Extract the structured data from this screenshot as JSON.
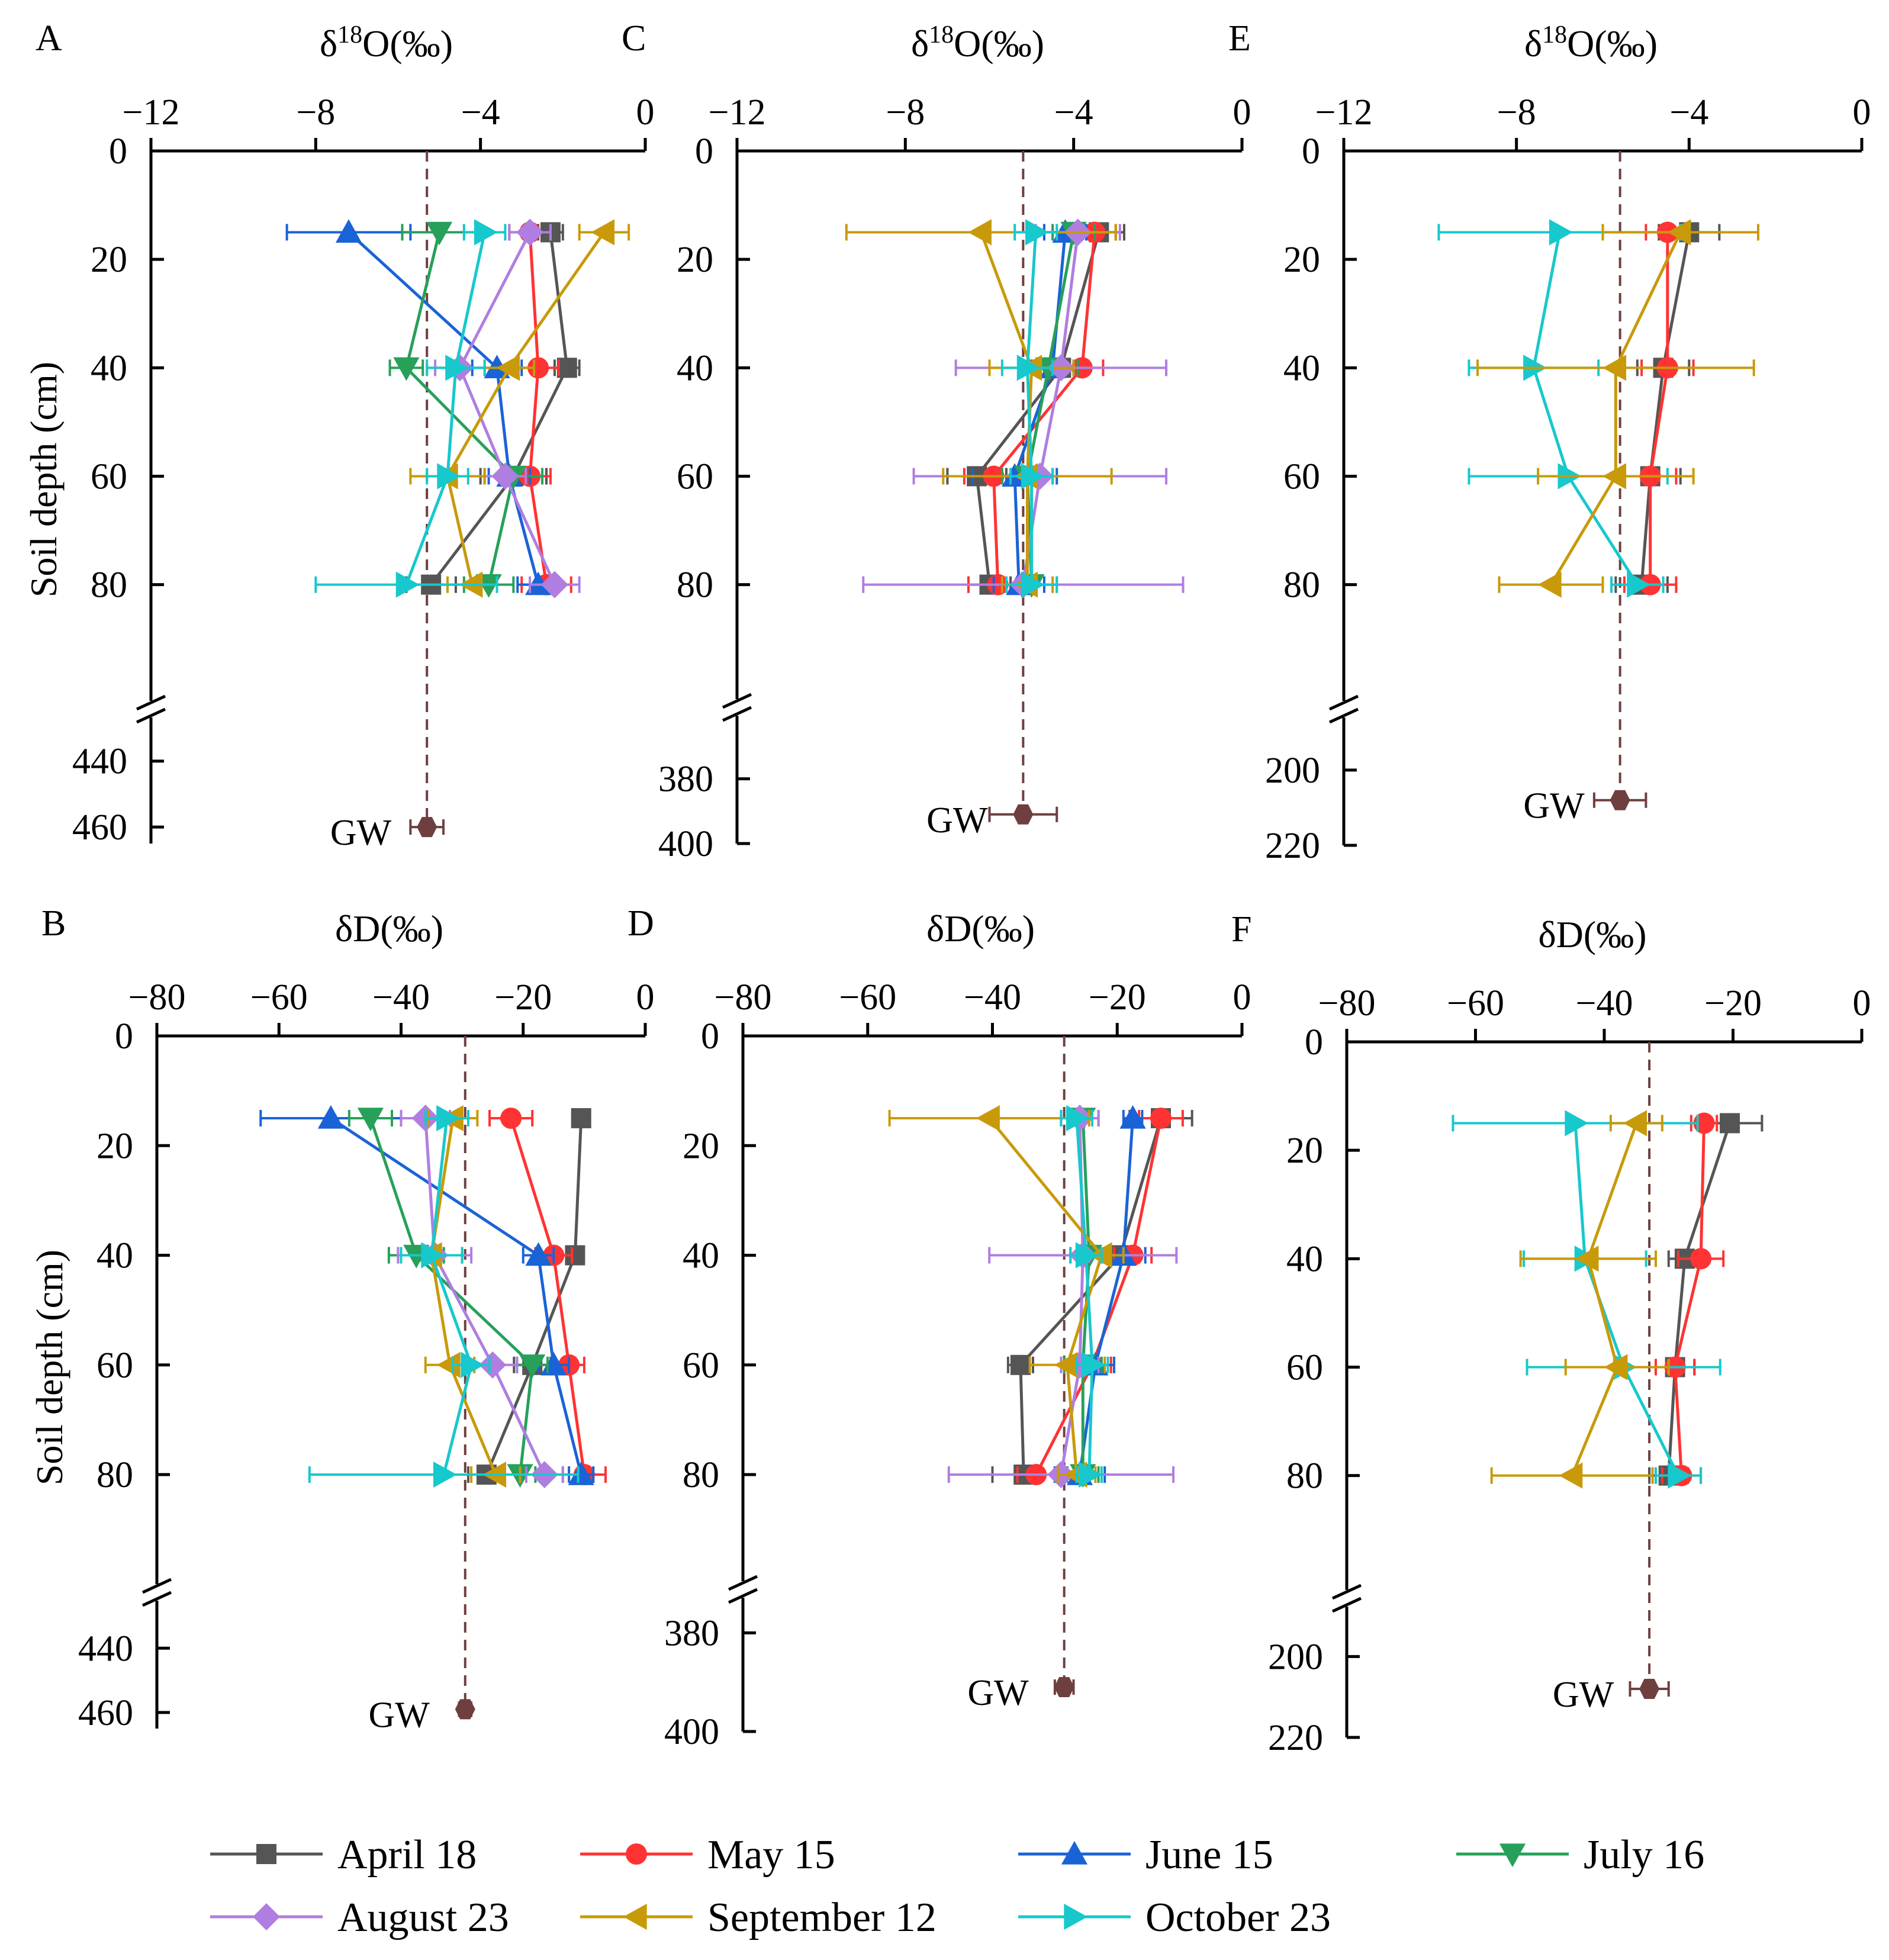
{
  "chart_data": {
    "type": "scatter",
    "description_series": [
      {
        "name": "April 18",
        "color": "#555555",
        "marker": "square"
      },
      {
        "name": "May 15",
        "color": "#ff3333",
        "marker": "circle"
      },
      {
        "name": "June 15",
        "color": "#1a63d6",
        "marker": "triangle-up"
      },
      {
        "name": "July 16",
        "color": "#27a05a",
        "marker": "triangle-down"
      },
      {
        "name": "August 23",
        "color": "#b07ee0",
        "marker": "diamond"
      },
      {
        "name": "September 12",
        "color": "#c89a0a",
        "marker": "triangle-left"
      },
      {
        "name": "October 23",
        "color": "#17c8cc",
        "marker": "triangle-right"
      }
    ],
    "gw_color": "#6f3f3f",
    "gw_label": "GW",
    "depths": [
      15,
      40,
      60,
      80
    ],
    "panels": [
      {
        "letter": "A",
        "title": "δ18O(‰)",
        "title_base": "δ",
        "title_sup": "18",
        "title_rest": "O(‰)",
        "xlim": [
          -12,
          0
        ],
        "xticks": [
          "−12",
          "−8",
          "−4",
          "0"
        ],
        "xtick_values": [
          -12,
          -8,
          -4,
          0
        ],
        "ylabel": "Soil depth (cm)",
        "yticks_upper": [
          "0",
          "20",
          "40",
          "60",
          "80"
        ],
        "yticks_lower": [
          "440",
          "460"
        ],
        "lower_range": [
          430,
          465
        ],
        "gw": {
          "depth": 460,
          "value": -5.3,
          "err": 0.4
        },
        "series": [
          {
            "name": "April 18",
            "values": [
              -2.3,
              -1.9,
              -3.2,
              -5.2
            ],
            "err": [
              0.3,
              0.3,
              0.8,
              0.6
            ]
          },
          {
            "name": "May 15",
            "values": [
              -2.8,
              -2.6,
              -2.8,
              -2.4
            ],
            "err": [
              0.5,
              0.5,
              0.5,
              0.6
            ]
          },
          {
            "name": "June 15",
            "values": [
              -7.2,
              -3.6,
              -3.3,
              -2.6
            ],
            "err": [
              1.5,
              0.6,
              0.5,
              0.5
            ]
          },
          {
            "name": "July 16",
            "values": [
              -5.0,
              -5.8,
              -3.2,
              -3.8
            ],
            "err": [
              0.9,
              0.4,
              0.7,
              0.6
            ]
          },
          {
            "name": "August 23",
            "values": [
              -2.8,
              -4.5,
              -3.4,
              -2.2
            ],
            "err": [
              0.5,
              0.6,
              0.5,
              0.6
            ]
          },
          {
            "name": "September 12",
            "values": [
              -1.0,
              -3.3,
              -4.8,
              -4.2
            ],
            "err": [
              0.6,
              0.6,
              0.9,
              0.6
            ]
          },
          {
            "name": "October 23",
            "values": [
              -3.9,
              -4.6,
              -4.8,
              -5.8
            ],
            "err": [
              0.5,
              0.7,
              0.5,
              2.2
            ]
          }
        ]
      },
      {
        "letter": "B",
        "title": "δD(‰)",
        "title_base": "δD(‰)",
        "title_sup": "",
        "title_rest": "",
        "xlim": [
          -80,
          0
        ],
        "xticks": [
          "−80",
          "−60",
          "−40",
          "−20",
          "0"
        ],
        "xtick_values": [
          -80,
          -60,
          -40,
          -20,
          0
        ],
        "ylabel": "Soil depth (cm)",
        "yticks_upper": [
          "0",
          "20",
          "40",
          "60",
          "80"
        ],
        "yticks_lower": [
          "440",
          "460"
        ],
        "lower_range": [
          430,
          465
        ],
        "gw": {
          "depth": 459,
          "value": -29.5,
          "err": 1
        },
        "series": [
          {
            "name": "April 18",
            "values": [
              -10.5,
              -11.5,
              -18.5,
              -26.0
            ],
            "err": [
              0.5,
              0.8,
              3.0,
              3.0
            ]
          },
          {
            "name": "May 15",
            "values": [
              -22.0,
              -15.0,
              -12.5,
              -10.0
            ],
            "err": [
              3.5,
              3.0,
              2.5,
              3.5
            ]
          },
          {
            "name": "June 15",
            "values": [
              -51.5,
              -17.5,
              -15.0,
              -10.5
            ],
            "err": [
              11.5,
              2.5,
              2.5,
              2.0
            ]
          },
          {
            "name": "July 16",
            "values": [
              -45.0,
              -37.5,
              -18.5,
              -20.5
            ],
            "err": [
              3.5,
              4.5,
              2.5,
              2.5
            ]
          },
          {
            "name": "August 23",
            "values": [
              -36.0,
              -34.5,
              -25.0,
              -16.5
            ],
            "err": [
              4.0,
              6.0,
              4.0,
              3.0
            ]
          },
          {
            "name": "September 12",
            "values": [
              -31.5,
              -35.0,
              -32.0,
              -24.5
            ],
            "err": [
              4.0,
              5.0,
              4.0,
              4.0
            ]
          },
          {
            "name": "October 23",
            "values": [
              -32.5,
              -35.0,
              -28.5,
              -33.0
            ],
            "err": [
              3.5,
              5.0,
              3.0,
              22.0
            ]
          }
        ]
      },
      {
        "letter": "C",
        "title": "δ18O(‰)",
        "title_base": "δ",
        "title_sup": "18",
        "title_rest": "O(‰)",
        "xlim": [
          -12,
          0
        ],
        "xticks": [
          "−12",
          "−8",
          "−4",
          "0"
        ],
        "xtick_values": [
          -12,
          -8,
          -4,
          0
        ],
        "ylabel": "",
        "yticks_upper": [
          "0",
          "20",
          "40",
          "60",
          "80"
        ],
        "yticks_lower": [
          "380",
          "400"
        ],
        "lower_range": [
          368,
          400
        ],
        "gw": {
          "depth": 391,
          "value": -5.2,
          "err": 0.8
        },
        "series": [
          {
            "name": "April 18",
            "values": [
              -3.4,
              -4.3,
              -6.3,
              -6.0
            ],
            "err": [
              0.6,
              0.5,
              0.7,
              0.5
            ]
          },
          {
            "name": "May 15",
            "values": [
              -3.5,
              -3.8,
              -5.9,
              -5.8
            ],
            "err": [
              0.5,
              0.5,
              0.7,
              0.7
            ]
          },
          {
            "name": "June 15",
            "values": [
              -4.2,
              -4.5,
              -5.4,
              -5.3
            ],
            "err": [
              0.5,
              0.5,
              1.0,
              0.6
            ]
          },
          {
            "name": "July 16",
            "values": [
              -4.0,
              -4.6,
              -5.1,
              -5.0
            ],
            "err": [
              0.5,
              0.7,
              0.6,
              0.6
            ]
          },
          {
            "name": "August 23",
            "values": [
              -3.9,
              -4.3,
              -4.8,
              -5.2
            ],
            "err": [
              1.0,
              2.5,
              3.0,
              3.8
            ]
          },
          {
            "name": "September 12",
            "values": [
              -6.2,
              -5.0,
              -5.1,
              -5.1
            ],
            "err": [
              3.2,
              1.0,
              2.0,
              0.6
            ]
          },
          {
            "name": "October 23",
            "values": [
              -4.9,
              -5.1,
              -5.0,
              -5.0
            ],
            "err": [
              0.5,
              0.6,
              0.5,
              0.6
            ]
          }
        ]
      },
      {
        "letter": "D",
        "title": "δD(‰)",
        "title_base": "δD(‰)",
        "title_sup": "",
        "title_rest": "",
        "xlim": [
          -80,
          0
        ],
        "xticks": [
          "−80",
          "−60",
          "−40",
          "−20",
          "0"
        ],
        "xtick_values": [
          -80,
          -60,
          -40,
          -20,
          0
        ],
        "ylabel": "",
        "yticks_upper": [
          "0",
          "20",
          "40",
          "60",
          "80"
        ],
        "yticks_lower": [
          "380",
          "400"
        ],
        "lower_range": [
          373,
          400
        ],
        "gw": {
          "depth": 391,
          "value": -28.5,
          "err": 1.5
        },
        "series": [
          {
            "name": "April 18",
            "values": [
              -13.0,
              -19.5,
              -35.5,
              -35.0
            ],
            "err": [
              5.0,
              3.0,
              2.0,
              5.0
            ]
          },
          {
            "name": "May 15",
            "values": [
              -13.0,
              -17.5,
              -24.0,
              -33.0
            ],
            "err": [
              3.5,
              3.0,
              3.0,
              3.0
            ]
          },
          {
            "name": "June 15",
            "values": [
              -17.5,
              -19.0,
              -23.5,
              -26.0
            ],
            "err": [
              1.5,
              3.5,
              3.0,
              4.0
            ]
          },
          {
            "name": "July 16",
            "values": [
              -25.5,
              -24.5,
              -25.5,
              -25.5
            ],
            "err": [
              2.5,
              3.0,
              3.0,
              2.5
            ]
          },
          {
            "name": "August 23",
            "values": [
              -26.0,
              -25.5,
              -26.0,
              -29.0
            ],
            "err": [
              3.0,
              15.0,
              3.0,
              18.0
            ]
          },
          {
            "name": "September 12",
            "values": [
              -40.5,
              -22.5,
              -28.0,
              -26.5
            ],
            "err": [
              16.0,
              3.5,
              6.0,
              3.0
            ]
          },
          {
            "name": "October 23",
            "values": [
              -26.5,
              -25.0,
              -24.0,
              -24.5
            ],
            "err": [
              2.5,
              2.5,
              2.5,
              2.0
            ]
          }
        ]
      },
      {
        "letter": "E",
        "title": "δ18O(‰)",
        "title_base": "δ",
        "title_sup": "18",
        "title_rest": "O(‰)",
        "xlim": [
          -12,
          0
        ],
        "xticks": [
          "−12",
          "−8",
          "−4",
          "0"
        ],
        "xtick_values": [
          -12,
          -8,
          -4,
          0
        ],
        "ylabel": "",
        "yticks_upper": [
          "0",
          "20",
          "40",
          "60",
          "80"
        ],
        "yticks_lower": [
          "200",
          "220"
        ],
        "lower_range": [
          192,
          220
        ],
        "gw": {
          "depth": 208,
          "value": -5.6,
          "err": 0.6
        },
        "series": [
          {
            "name": "April 18",
            "values": [
              -4.0,
              -4.6,
              -4.9,
              -5.1
            ],
            "err": [
              0.7,
              0.6,
              0.7,
              0.6
            ]
          },
          {
            "name": "May 15",
            "values": [
              -4.5,
              -4.5,
              -4.9,
              -4.9
            ],
            "err": [
              0.5,
              0.6,
              0.6,
              0.6
            ]
          },
          {
            "name": "October 23",
            "values": [
              -7.0,
              -7.6,
              -6.8,
              -5.2
            ],
            "err": [
              2.8,
              1.5,
              2.3,
              0.6
            ]
          },
          {
            "name": "September 12",
            "values": [
              -4.2,
              -5.7,
              -5.7,
              -7.2
            ],
            "err": [
              1.8,
              3.2,
              1.8,
              1.2
            ]
          }
        ]
      },
      {
        "letter": "F",
        "title": "δD(‰)",
        "title_base": "δD(‰)",
        "title_sup": "",
        "title_rest": "",
        "xlim": [
          -80,
          0
        ],
        "xticks": [
          "−80",
          "−60",
          "−40",
          "−20",
          "0"
        ],
        "xtick_values": [
          -80,
          -60,
          -40,
          -20,
          0
        ],
        "ylabel": "",
        "yticks_upper": [
          "0",
          "20",
          "40",
          "60",
          "80"
        ],
        "yticks_lower": [
          "200",
          "220"
        ],
        "lower_range": [
          190,
          220
        ],
        "gw": {
          "depth": 208,
          "value": -33,
          "err": 3
        },
        "series": [
          {
            "name": "April 18",
            "values": [
              -20.5,
              -27.5,
              -29.0,
              -30.0
            ],
            "err": [
              5.0,
              2.5,
              3.0,
              3.0
            ]
          },
          {
            "name": "May 15",
            "values": [
              -24.5,
              -25.0,
              -29.0,
              -28.0
            ],
            "err": [
              2.0,
              3.5,
              3.0,
              3.0
            ]
          },
          {
            "name": "October 23",
            "values": [
              -44.5,
              -43.0,
              -37.0,
              -28.5
            ],
            "err": [
              19.0,
              9.5,
              15.0,
              3.5
            ]
          },
          {
            "name": "September 12",
            "values": [
              -35.0,
              -42.5,
              -38.0,
              -45.0
            ],
            "err": [
              4.0,
              10.5,
              8.0,
              12.5
            ]
          }
        ]
      }
    ],
    "legend": [
      "April 18",
      "May 15",
      "June 15",
      "July 16",
      "August 23",
      "September 12",
      "October 23"
    ]
  }
}
